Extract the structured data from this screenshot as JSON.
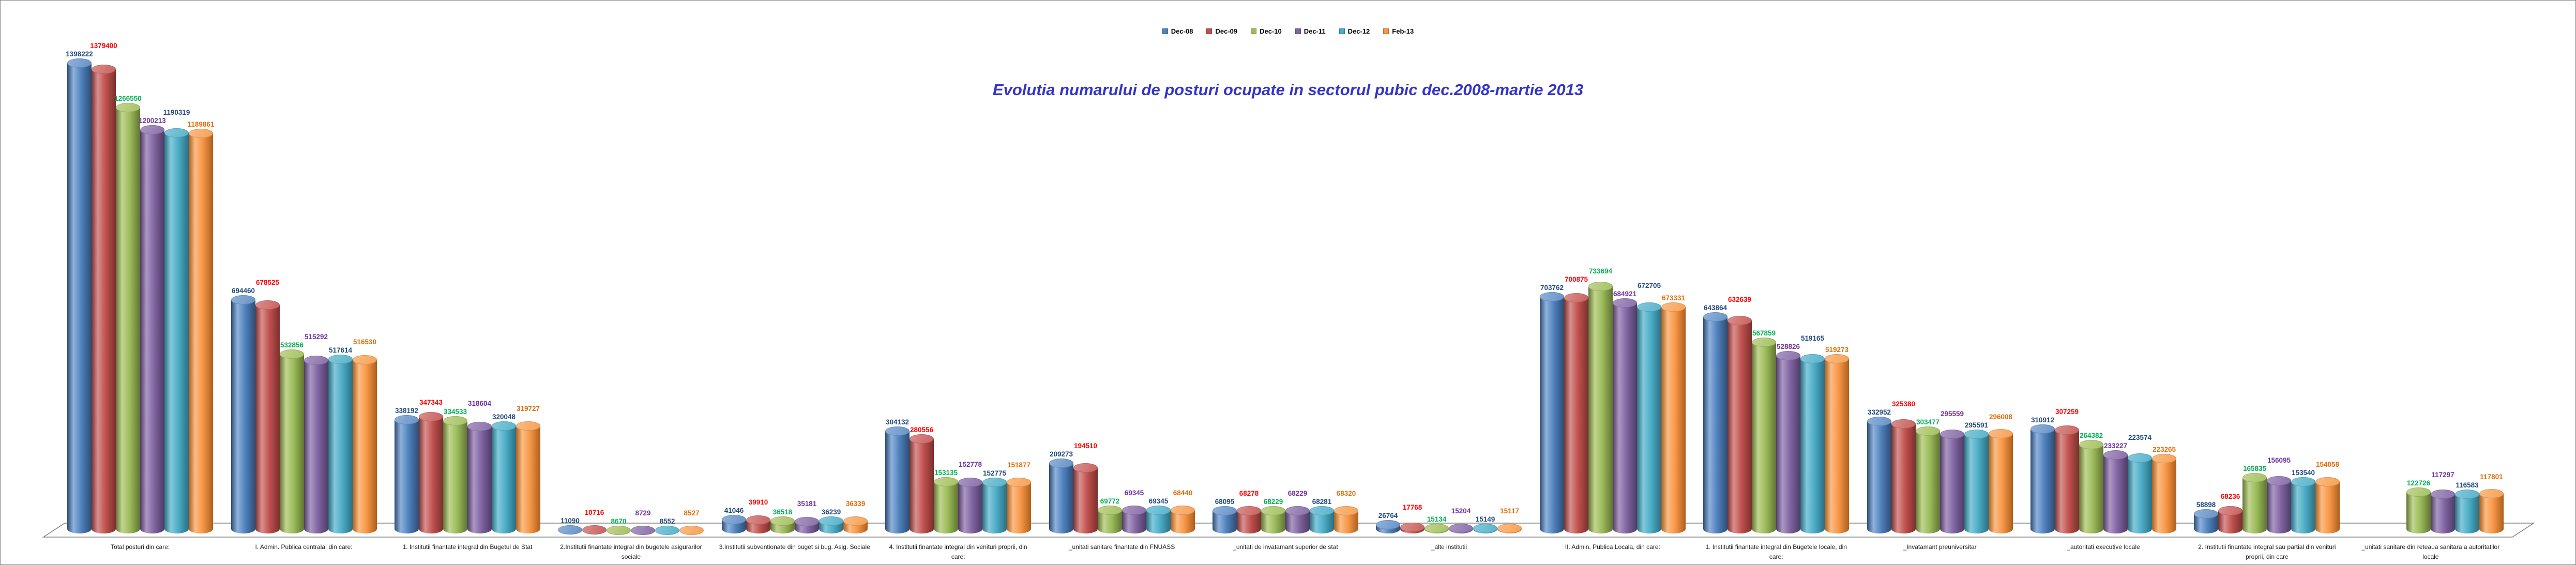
{
  "chart_data": {
    "type": "bar",
    "style": "3d-cylinder",
    "title": "Evolutia numarului de posturi ocupate in sectorul pubic dec.2008-martie 2013",
    "title_color": "#3333CC",
    "legend_position": "top-center",
    "gridlines": false,
    "floor_color": "#808080",
    "ylim": [
      0,
      1400000
    ],
    "categories": [
      "Total posturi din care:",
      "I. Admin. Publica centrala, din care:",
      "1. Institutii finantate integral din Bugetul de Stat",
      "2.Institutii finantate integral din bugetele asigurarilor sociale",
      "3.Institutii subventionate din buget si bug. Asig. Sociale",
      "4. Institutii finantate integral din venituri proprii, din care:",
      "_unitati sanitare finantate din FNUASS",
      "_unitati de invatamant superior de stat",
      "_alte institutii",
      "II. Admin. Publica Locala, din care:",
      "1. Institutii finantate integral din Bugetele locale, din care:",
      "_Invatamant preuniversitar",
      "_autoritati executive locale",
      "2. Institutii finantate integral sau partial din venituri proprii, din care",
      "_unitati sanitare din reteaua sanitara a autoritatilor locale"
    ],
    "series": [
      {
        "name": "Dec-08",
        "color": "#4F81BD",
        "dark": "#2C4D75",
        "light": "#8FB2DC",
        "top": "#6893C6",
        "label_color": "#1F497D",
        "values": [
          1398222,
          694460,
          338192,
          11090,
          41046,
          304132,
          209273,
          68095,
          26764,
          703762,
          643864,
          332952,
          310912,
          58898,
          null
        ]
      },
      {
        "name": "Dec-09",
        "color": "#C0504D",
        "dark": "#7A302E",
        "light": "#DA908E",
        "top": "#C9615E",
        "label_color": "#FF0000",
        "values": [
          1379400,
          678525,
          347343,
          10716,
          39910,
          280556,
          194510,
          68278,
          17768,
          700875,
          632639,
          325380,
          307259,
          68236,
          null
        ]
      },
      {
        "name": "Dec-10",
        "color": "#9BBB59",
        "dark": "#617433",
        "light": "#C2D590",
        "top": "#A5C263",
        "label_color": "#00B050",
        "values": [
          1266550,
          532856,
          334533,
          8670,
          36518,
          153135,
          69772,
          68229,
          15134,
          733694,
          567859,
          303477,
          264382,
          165835,
          122726
        ]
      },
      {
        "name": "Dec-11",
        "color": "#8064A2",
        "dark": "#4E3C65",
        "light": "#AC97C3",
        "top": "#8A70AB",
        "label_color": "#7030A0",
        "values": [
          1200213,
          515292,
          318604,
          8729,
          35181,
          152778,
          69345,
          68229,
          15204,
          684921,
          528826,
          295559,
          233227,
          156095,
          117297
        ]
      },
      {
        "name": "Dec-12",
        "color": "#4BACC6",
        "dark": "#2B6F83",
        "light": "#84C9DB",
        "top": "#58B4CC",
        "label_color": "#1F497D",
        "values": [
          1190319,
          517614,
          320048,
          8552,
          36239,
          152775,
          69345,
          68281,
          15149,
          672705,
          519165,
          295591,
          223574,
          153540,
          116583
        ]
      },
      {
        "name": "Feb-13",
        "color": "#F79646",
        "dark": "#AD5F1E",
        "light": "#FBBC84",
        "top": "#F8A155",
        "label_color": "#E36C0A",
        "values": [
          1189861,
          516530,
          319727,
          8527,
          36339,
          151877,
          68440,
          68320,
          15117,
          673331,
          519273,
          296008,
          223265,
          154058,
          117801
        ]
      }
    ]
  }
}
